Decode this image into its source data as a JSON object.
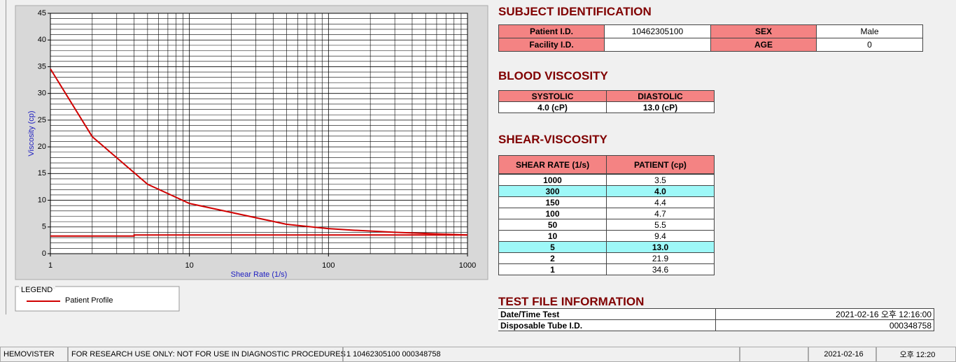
{
  "chart_data": {
    "type": "line",
    "x_label": "Shear Rate (1/s)",
    "y_label": "Viscosity (cp)",
    "x": [
      1,
      2,
      5,
      10,
      50,
      100,
      150,
      300,
      1000
    ],
    "series": [
      {
        "name": "Patient Profile",
        "color": "#d00000",
        "values": [
          34.6,
          21.9,
          13.0,
          9.4,
          5.5,
          4.7,
          4.4,
          4.0,
          3.5
        ]
      },
      {
        "color": "#d00000",
        "x": [
          1,
          4,
          4,
          1000
        ],
        "values": [
          3.3,
          3.3,
          3.5,
          3.5
        ]
      }
    ],
    "xlim": [
      1,
      1000
    ],
    "xticks": [
      1,
      10,
      100,
      1000
    ],
    "x_log": true,
    "ylim": [
      0,
      45
    ],
    "yticks": [
      0,
      5,
      10,
      15,
      20,
      25,
      30,
      35,
      40,
      45
    ],
    "grid": true,
    "minor_grid": true,
    "legend_title": "LEGEND"
  },
  "subject": {
    "title": "SUBJECT IDENTIFICATION",
    "fields": [
      {
        "label": "Patient I.D.",
        "value": "10462305100"
      },
      {
        "label": "SEX",
        "value": "Male"
      },
      {
        "label": "Facility I.D."
      },
      {
        "label": "AGE",
        "value": 0
      }
    ]
  },
  "blood": {
    "title": "BLOOD VISCOSITY",
    "headers": [
      "SYSTOLIC",
      "DIASTOLIC"
    ],
    "values": [
      "4.0 (cP)",
      "13.0 (cP)"
    ]
  },
  "shear": {
    "title": "SHEAR-VISCOSITY",
    "headers": [
      "SHEAR RATE (1/s)",
      "PATIENT (cp)"
    ],
    "rows": [
      [
        1000,
        "3.5"
      ],
      [
        300,
        "4.0"
      ],
      [
        150,
        "4.4"
      ],
      [
        100,
        "4.7"
      ],
      [
        50,
        "5.5"
      ],
      [
        10,
        "9.4"
      ],
      [
        5,
        "13.0"
      ],
      [
        2,
        "21.9"
      ],
      [
        1,
        "34.6"
      ]
    ],
    "highlight_rows": [
      1,
      6
    ]
  },
  "test_file": {
    "title": "TEST FILE INFORMATION",
    "rows": [
      [
        "Date/Time Test",
        "2021-02-16   오후 12:16:00"
      ],
      [
        "Disposable Tube I.D.",
        "000348758"
      ]
    ]
  },
  "status_bar": [
    "HEMOVISTER",
    "FOR RESEARCH USE ONLY: NOT FOR USE IN DIAGNOSTIC PROCEDURES",
    "1  10462305100  000348758",
    "2021-02-16",
    "오후 12:20"
  ]
}
